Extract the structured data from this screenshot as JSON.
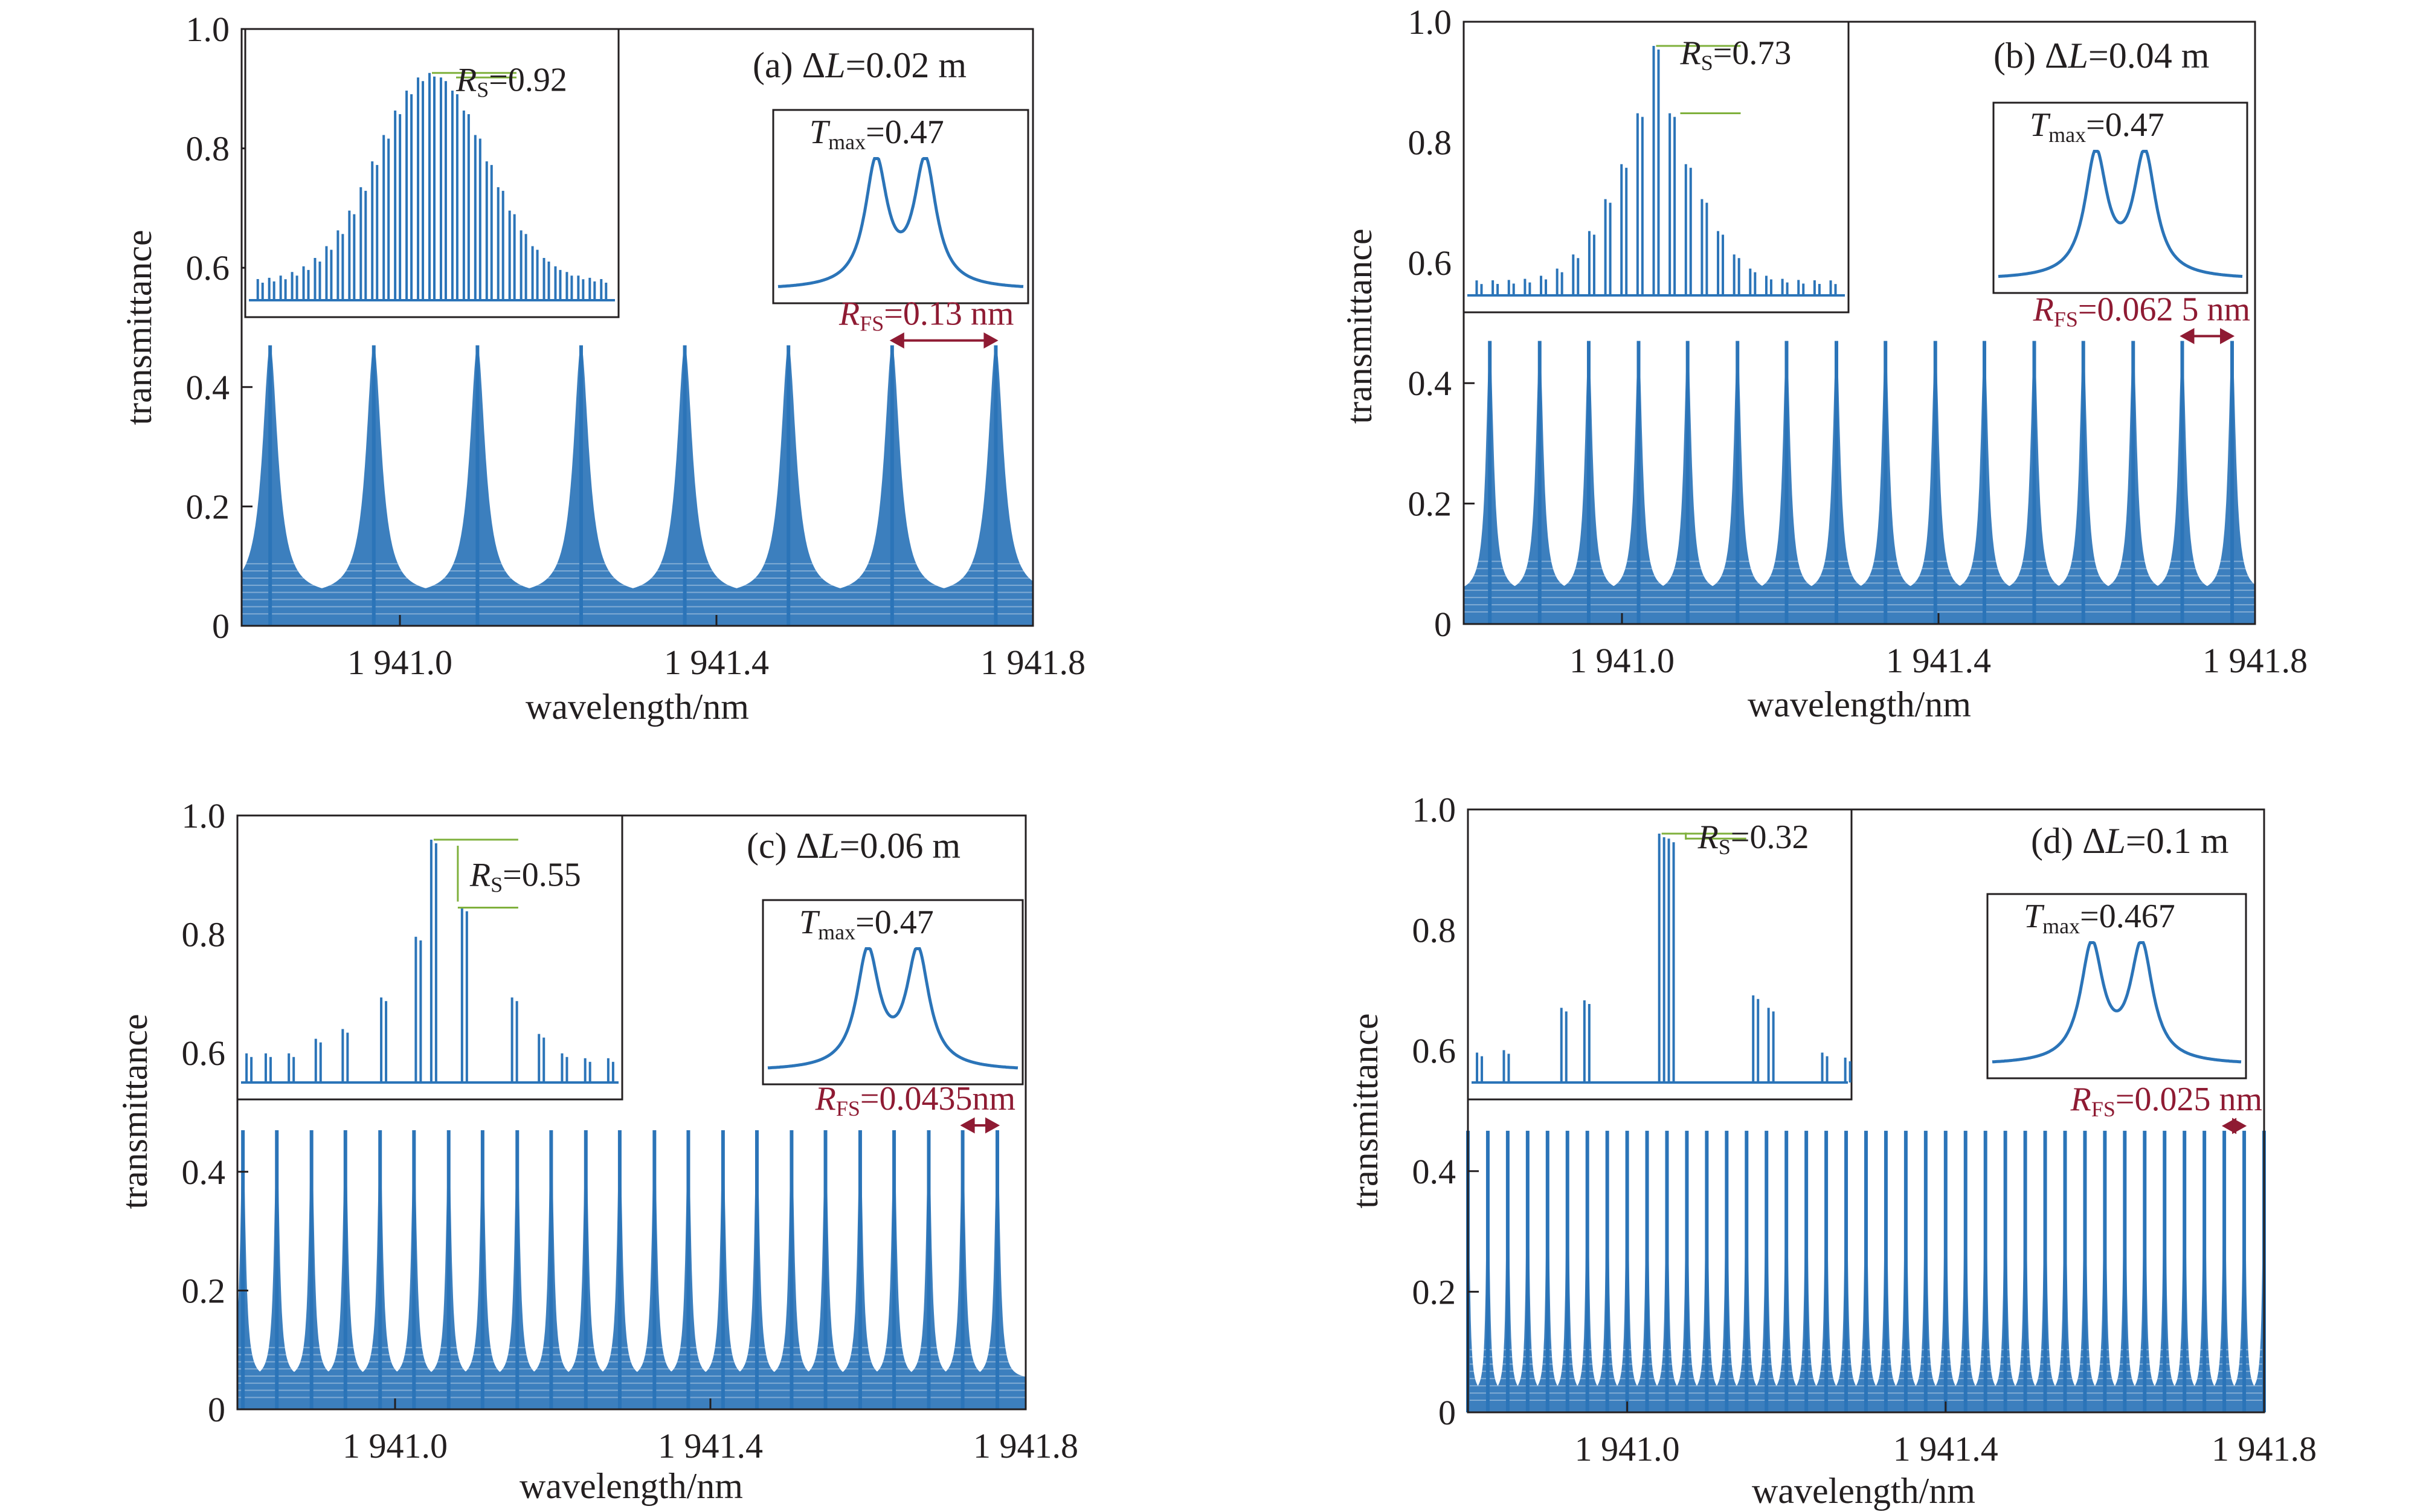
{
  "colors": {
    "curve": "#2b74b8",
    "annotation_line": "#7fb03c",
    "rfs_arrow": "#8f1b33",
    "text": "#231f20",
    "axis": "#231f20"
  },
  "chart_data": [
    {
      "type": "line",
      "panel_label": "(a) ΔL=0.02 m",
      "panel_prefix": "(a) Δ",
      "delta_var": "L",
      "delta_value": "=0.02 m",
      "xlabel": "wavelength/nm",
      "ylabel": "transmittance",
      "xlim": [
        1940.8,
        1941.8
      ],
      "ylim": [
        0,
        1.0
      ],
      "x_ticks": [
        1941.0,
        1941.4,
        1941.8
      ],
      "x_tick_labels": [
        "1 941.0",
        "1 941.4",
        "1 941.8"
      ],
      "y_ticks": [
        0,
        0.2,
        0.4,
        0.6,
        0.8,
        1.0
      ],
      "y_tick_labels": [
        "0",
        "0.2",
        "0.4",
        "0.6",
        "0.8",
        "1.0"
      ],
      "series": [
        {
          "envelope_peak_wavelengths": [
            1940.836,
            1940.967,
            1941.098,
            1941.229,
            1941.36,
            1941.491,
            1941.622,
            1941.753
          ],
          "peak_transmittance": 0.47,
          "valley_transmittance": 0.05,
          "free_spectral_range_nm": 0.13
        }
      ],
      "annotations": {
        "rs_label": "R",
        "rs_sub": "S",
        "rs_value": "=0.92",
        "tmax_label": "T",
        "tmax_sub": "max",
        "tmax_value": "=0.47",
        "rfs_label": "R",
        "rfs_sub": "FS",
        "rfs_value": "=0.13 nm",
        "rs": 0.92,
        "tmax": 0.47,
        "rfs_nm": 0.13
      }
    },
    {
      "type": "line",
      "panel_label": "(b) ΔL=0.04 m",
      "panel_prefix": "(b) Δ",
      "delta_var": "L",
      "delta_value": "=0.04 m",
      "xlabel": "wavelength/nm",
      "ylabel": "transmittance",
      "xlim": [
        1940.8,
        1941.8
      ],
      "ylim": [
        0,
        1.0
      ],
      "x_ticks": [
        1941.0,
        1941.4,
        1941.8
      ],
      "x_tick_labels": [
        "1 941.0",
        "1 941.4",
        "1 941.8"
      ],
      "y_ticks": [
        0,
        0.2,
        0.4,
        0.6,
        0.8,
        1.0
      ],
      "y_tick_labels": [
        "0",
        "0.2",
        "0.4",
        "0.6",
        "0.8",
        "1.0"
      ],
      "series": [
        {
          "envelope_peak_wavelengths": [
            1940.833,
            1940.896,
            1940.958,
            1941.021,
            1941.083,
            1941.146,
            1941.208,
            1941.271,
            1941.333,
            1941.396,
            1941.458,
            1941.521,
            1941.583,
            1941.646,
            1941.708,
            1941.771
          ],
          "peak_transmittance": 0.47,
          "valley_transmittance": 0.05,
          "free_spectral_range_nm": 0.0625
        }
      ],
      "annotations": {
        "rs_label": "R",
        "rs_sub": "S",
        "rs_value": "=0.73",
        "tmax_label": "T",
        "tmax_sub": "max",
        "tmax_value": "=0.47",
        "rfs_label": "R",
        "rfs_sub": "FS",
        "rfs_value": "=0.062 5 nm",
        "rs": 0.73,
        "tmax": 0.47,
        "rfs_nm": 0.0625
      }
    },
    {
      "type": "line",
      "panel_label": "(c) ΔL=0.06 m",
      "panel_prefix": "(c) Δ",
      "delta_var": "L",
      "delta_value": "=0.06 m",
      "xlabel": "wavelength/nm",
      "ylabel": "transmittance",
      "xlim": [
        1940.8,
        1941.8
      ],
      "ylim": [
        0,
        1.0
      ],
      "x_ticks": [
        1941.0,
        1941.4,
        1941.8
      ],
      "x_tick_labels": [
        "1 941.0",
        "1 941.4",
        "1 941.8"
      ],
      "y_ticks": [
        0,
        0.2,
        0.4,
        0.6,
        0.8,
        1.0
      ],
      "y_tick_labels": [
        "0",
        "0.2",
        "0.4",
        "0.6",
        "0.8",
        "1.0"
      ],
      "series": [
        {
          "envelope_peak_wavelengths": [
            1940.807,
            1940.85,
            1940.894,
            1940.937,
            1940.981,
            1941.024,
            1941.068,
            1941.111,
            1941.155,
            1941.198,
            1941.242,
            1941.285,
            1941.329,
            1941.372,
            1941.416,
            1941.459,
            1941.503,
            1941.546,
            1941.59,
            1941.633,
            1941.677,
            1941.72,
            1941.764
          ],
          "peak_transmittance": 0.47,
          "valley_transmittance": 0.05,
          "free_spectral_range_nm": 0.0435
        }
      ],
      "annotations": {
        "rs_label": "R",
        "rs_sub": "S",
        "rs_value": "=0.55",
        "tmax_label": "T",
        "tmax_sub": "max",
        "tmax_value": "=0.47",
        "rfs_label": "R",
        "rfs_sub": "FS",
        "rfs_value": "=0.0435nm",
        "rs": 0.55,
        "tmax": 0.47,
        "rfs_nm": 0.0435
      }
    },
    {
      "type": "line",
      "panel_label": "(d) ΔL=0.1 m",
      "panel_prefix": "(d) Δ",
      "delta_var": "L",
      "delta_value": "=0.1 m",
      "xlabel": "wavelength/nm",
      "ylabel": "transmittance",
      "xlim": [
        1940.8,
        1941.8
      ],
      "ylim": [
        0,
        1.0
      ],
      "x_ticks": [
        1941.0,
        1941.4,
        1941.8
      ],
      "x_tick_labels": [
        "1 941.0",
        "1 941.4",
        "1 941.8"
      ],
      "y_ticks": [
        0,
        0.2,
        0.4,
        0.6,
        0.8,
        1.0
      ],
      "y_tick_labels": [
        "0",
        "0.2",
        "0.4",
        "0.6",
        "0.8",
        "1.0"
      ],
      "series": [
        {
          "envelope_peak_wavelengths": [
            1940.8,
            1940.825,
            1940.85,
            1940.875,
            1940.9,
            1940.925,
            1940.95,
            1940.975,
            1941.0,
            1941.025,
            1941.05,
            1941.075,
            1941.1,
            1941.125,
            1941.15,
            1941.175,
            1941.2,
            1941.225,
            1941.25,
            1941.275,
            1941.3,
            1941.325,
            1941.35,
            1941.375,
            1941.4,
            1941.425,
            1941.45,
            1941.475,
            1941.5,
            1941.525,
            1941.55,
            1941.575,
            1941.6,
            1941.625,
            1941.65,
            1941.675,
            1941.7,
            1941.725,
            1941.75,
            1941.775,
            1941.8
          ],
          "peak_transmittance": 0.467,
          "valley_transmittance": 0.03,
          "free_spectral_range_nm": 0.025
        }
      ],
      "annotations": {
        "rs_label": "R",
        "rs_sub": "S",
        "rs_value": "=0.32",
        "tmax_label": "T",
        "tmax_sub": "max",
        "tmax_value": "=0.467",
        "rfs_label": "R",
        "rfs_sub": "FS",
        "rfs_value": "=0.025 nm",
        "rs": 0.32,
        "tmax": 0.467,
        "rfs_nm": 0.025
      }
    }
  ]
}
